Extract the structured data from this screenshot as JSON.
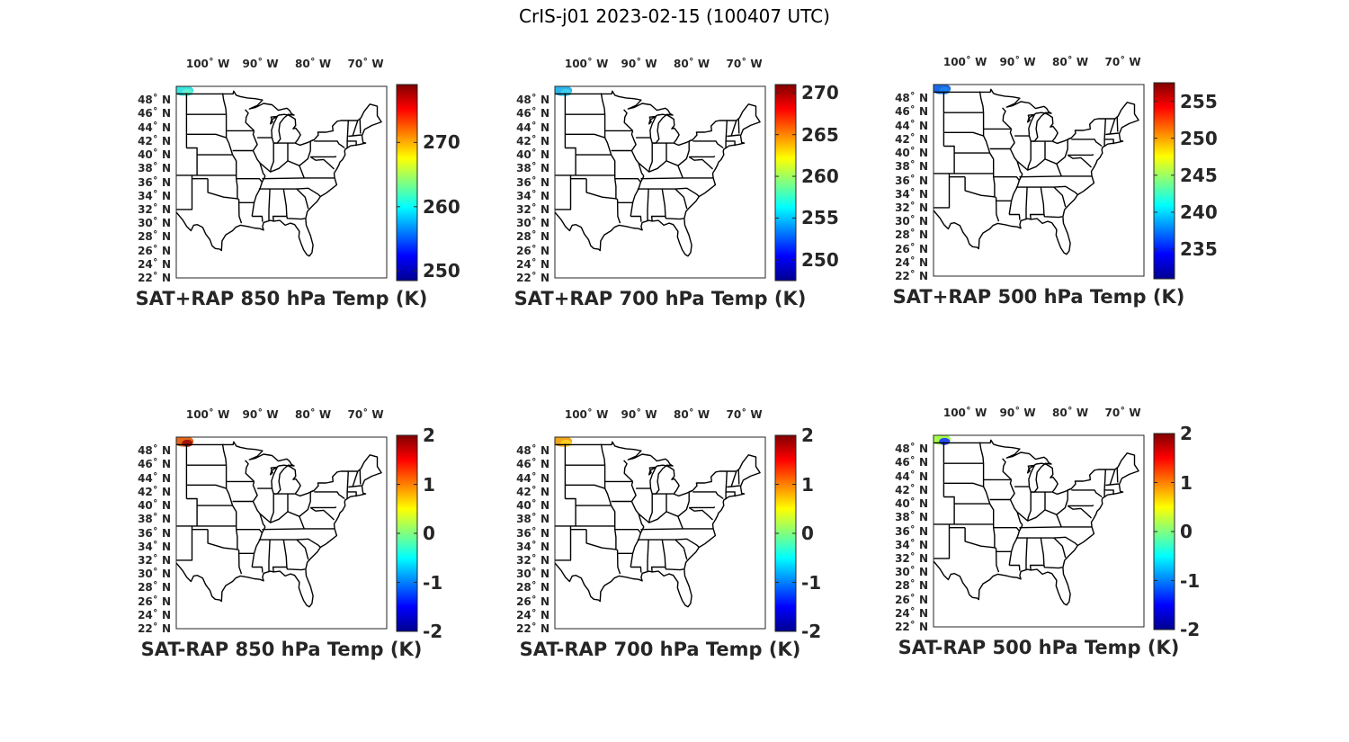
{
  "figure": {
    "title": "CrIS-j01 2023-02-15 (100407 UTC)"
  },
  "lon_ticks": [
    {
      "lon": -100,
      "label": "100˚ W"
    },
    {
      "lon": -90,
      "label": "90˚ W"
    },
    {
      "lon": -80,
      "label": "80˚ W"
    },
    {
      "lon": -70,
      "label": "70˚ W"
    }
  ],
  "lat_ticks": [
    {
      "lat": 48,
      "label": "48˚ N"
    },
    {
      "lat": 46,
      "label": "46˚ N"
    },
    {
      "lat": 44,
      "label": "44˚ N"
    },
    {
      "lat": 42,
      "label": "42˚ N"
    },
    {
      "lat": 40,
      "label": "40˚ N"
    },
    {
      "lat": 38,
      "label": "38˚ N"
    },
    {
      "lat": 36,
      "label": "36˚ N"
    },
    {
      "lat": 34,
      "label": "34˚ N"
    },
    {
      "lat": 32,
      "label": "32˚ N"
    },
    {
      "lat": 30,
      "label": "30˚ N"
    },
    {
      "lat": 28,
      "label": "28˚ N"
    },
    {
      "lat": 26,
      "label": "26˚ N"
    },
    {
      "lat": 24,
      "label": "24˚ N"
    },
    {
      "lat": 22,
      "label": "22˚ N"
    }
  ],
  "map_extent": {
    "lon_min": -106,
    "lon_max": -66,
    "lat_min": 22,
    "lat_max": 50
  },
  "colormap": [
    "#00008f",
    "#0000ff",
    "#0080ff",
    "#00ffff",
    "#80ff80",
    "#ffff00",
    "#ff8000",
    "#ff0000",
    "#800000"
  ],
  "panels": [
    {
      "id": "sat-rap-850",
      "title": "SAT+RAP 850 hPa Temp (K)",
      "cbar_min": 248.5,
      "cbar_max": 279,
      "cbar_ticks": [
        {
          "value": 250,
          "label": "250"
        },
        {
          "value": 260,
          "label": "260"
        },
        {
          "value": 270,
          "label": "270"
        }
      ],
      "blob_color": "#30e0e0",
      "blob_accent": "#60f0d0"
    },
    {
      "id": "sat-rap-700",
      "title": "SAT+RAP 700 hPa Temp (K)",
      "cbar_min": 247.5,
      "cbar_max": 271,
      "cbar_ticks": [
        {
          "value": 250,
          "label": "250"
        },
        {
          "value": 255,
          "label": "255"
        },
        {
          "value": 260,
          "label": "260"
        },
        {
          "value": 265,
          "label": "265"
        },
        {
          "value": 270,
          "label": "270"
        }
      ],
      "blob_color": "#20b0e8",
      "blob_accent": "#40d0f0"
    },
    {
      "id": "sat-rap-500",
      "title": "SAT+RAP 500 hPa Temp (K)",
      "cbar_min": 231,
      "cbar_max": 257.5,
      "cbar_ticks": [
        {
          "value": 235,
          "label": "235"
        },
        {
          "value": 240,
          "label": "240"
        },
        {
          "value": 245,
          "label": "245"
        },
        {
          "value": 250,
          "label": "250"
        },
        {
          "value": 255,
          "label": "255"
        }
      ],
      "blob_color": "#1060e0",
      "blob_accent": "#2080f0"
    },
    {
      "id": "sat-minus-rap-850",
      "title": "SAT-RAP 850 hPa Temp (K)",
      "cbar_min": -2,
      "cbar_max": 2,
      "cbar_ticks": [
        {
          "value": -2,
          "label": "-2"
        },
        {
          "value": -1,
          "label": "-1"
        },
        {
          "value": 0,
          "label": "0"
        },
        {
          "value": 1,
          "label": "1"
        },
        {
          "value": 2,
          "label": "2"
        }
      ],
      "blob_color": "#e06010",
      "blob_accent": "#a01000"
    },
    {
      "id": "sat-minus-rap-700",
      "title": "SAT-RAP 700 hPa Temp (K)",
      "cbar_min": -2,
      "cbar_max": 2,
      "cbar_ticks": [
        {
          "value": -2,
          "label": "-2"
        },
        {
          "value": -1,
          "label": "-1"
        },
        {
          "value": 0,
          "label": "0"
        },
        {
          "value": 1,
          "label": "1"
        },
        {
          "value": 2,
          "label": "2"
        }
      ],
      "blob_color": "#f0a010",
      "blob_accent": "#ffd020"
    },
    {
      "id": "sat-minus-rap-500",
      "title": "SAT-RAP 500 hPa Temp (K)",
      "cbar_min": -2,
      "cbar_max": 2,
      "cbar_ticks": [
        {
          "value": -2,
          "label": "-2"
        },
        {
          "value": -1,
          "label": "-1"
        },
        {
          "value": 0,
          "label": "0"
        },
        {
          "value": 1,
          "label": "1"
        },
        {
          "value": 2,
          "label": "2"
        }
      ],
      "blob_color": "#a0ff40",
      "blob_accent": "#2040ff"
    }
  ]
}
